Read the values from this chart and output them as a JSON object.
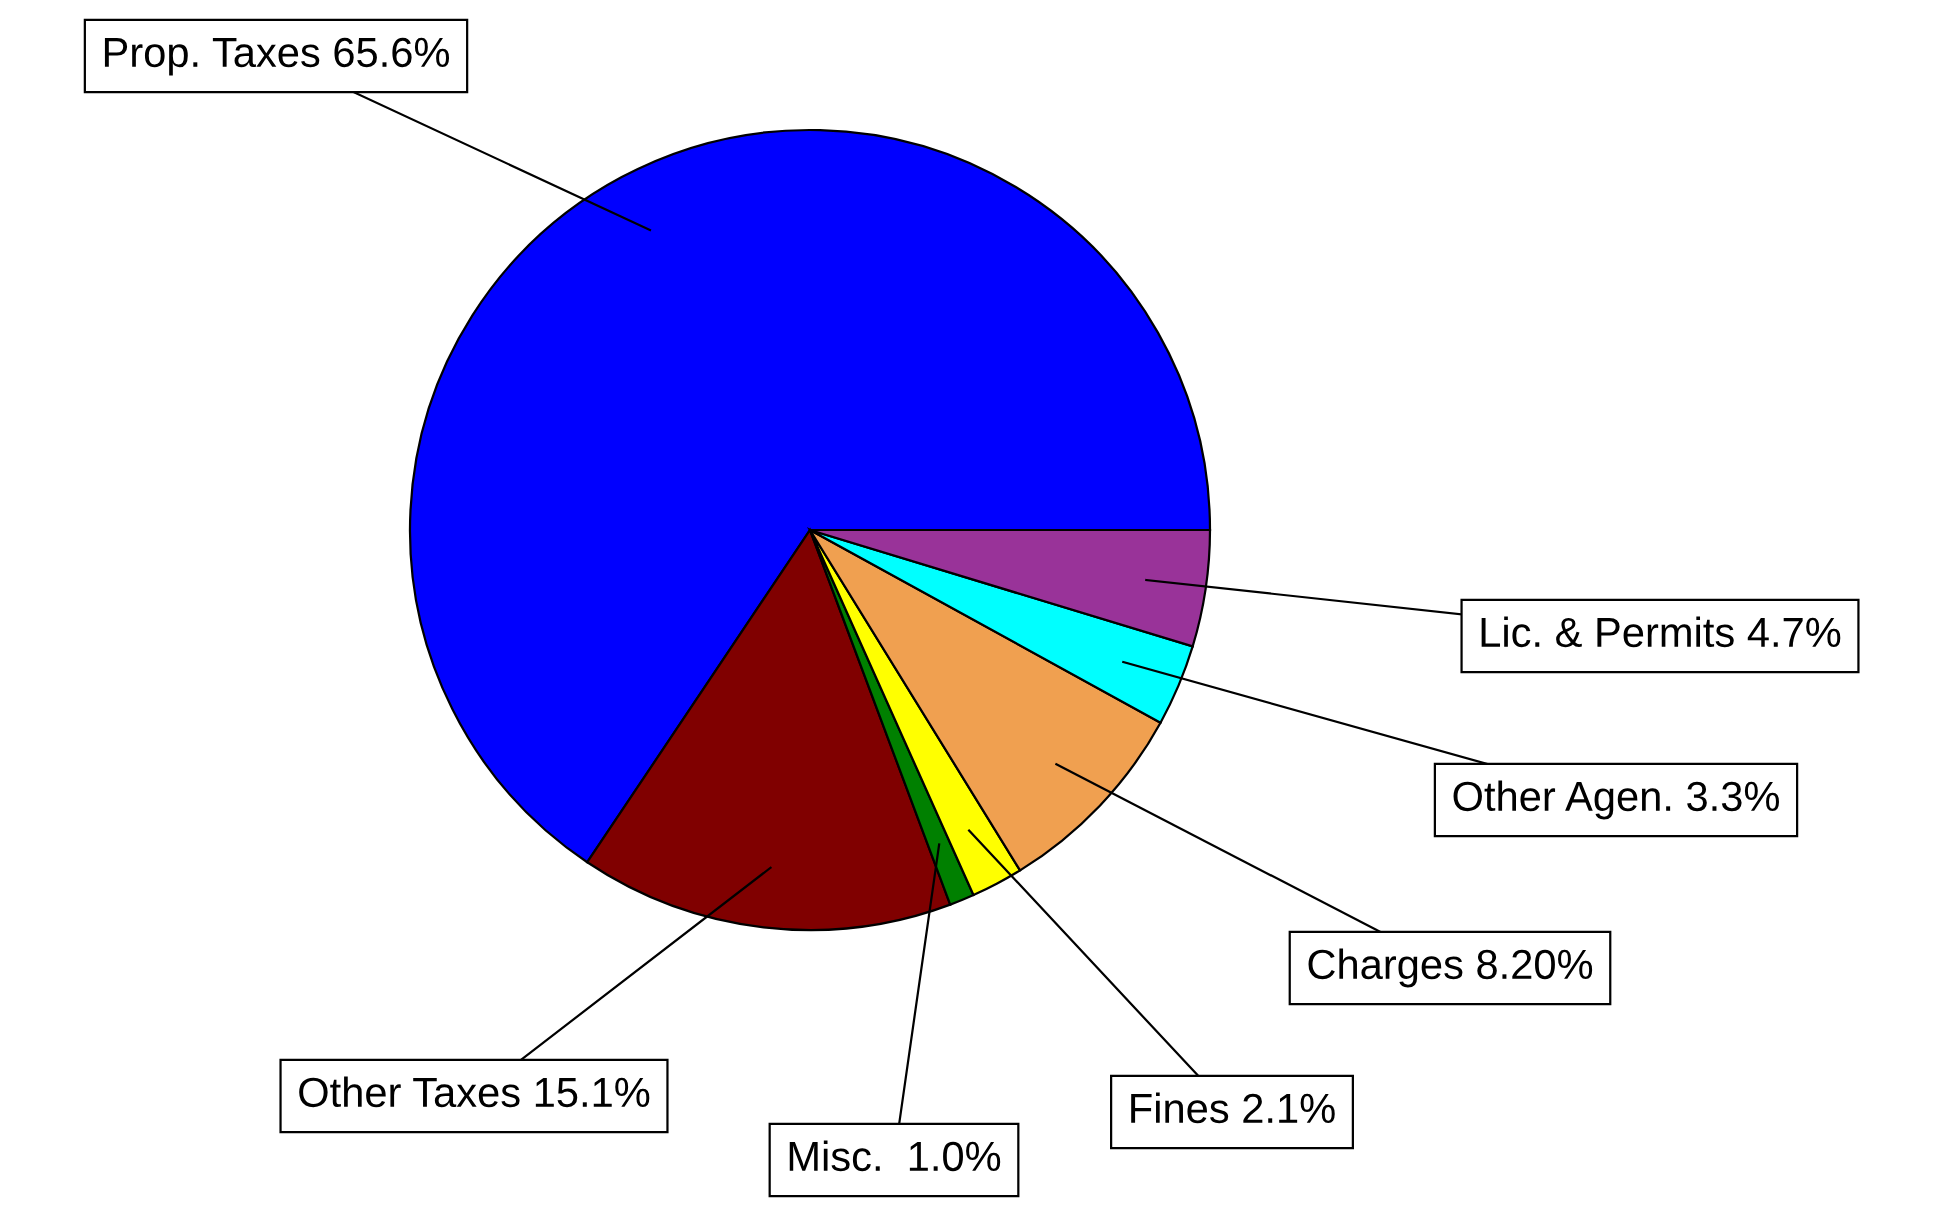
{
  "chart_data": {
    "type": "pie",
    "categories": [
      "Prop. Taxes",
      "Other Taxes",
      "Misc. ",
      "Fines",
      "Charges",
      "Other Agen.",
      "Lic. & Permits"
    ],
    "values": [
      65.6,
      15.1,
      1.0,
      2.1,
      8.2,
      3.3,
      4.7
    ],
    "value_labels": [
      "65.6%",
      "15.1%",
      "1.0%",
      "2.1%",
      "8.20%",
      "3.3%",
      "4.7%"
    ],
    "colors": [
      "#0000ff",
      "#800000",
      "#008000",
      "#ffff00",
      "#f0a050",
      "#00ffff",
      "#993399"
    ]
  }
}
